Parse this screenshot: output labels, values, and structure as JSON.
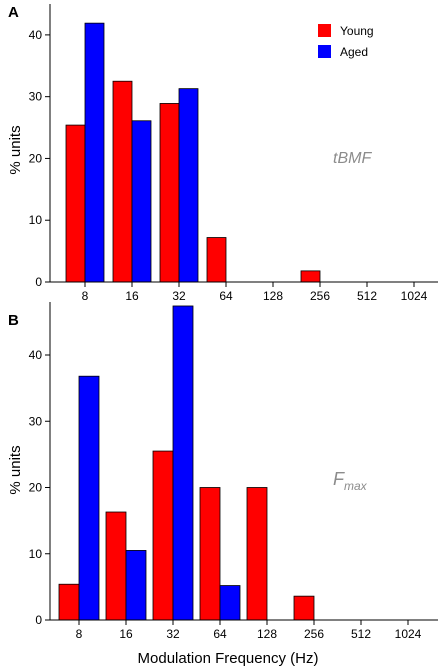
{
  "colors": {
    "young": "#ff0000",
    "aged": "#0000ff",
    "axis": "#000000",
    "annotation": "#8c8c8c"
  },
  "xlabel": "Modulation Frequency (Hz)",
  "chart_data": [
    {
      "type": "bar",
      "panel_label": "A",
      "annotation": "tBMF",
      "ylabel": "% units",
      "ylim": [
        0,
        45
      ],
      "yticks": [
        0,
        10,
        20,
        30,
        40
      ],
      "categories": [
        "8",
        "16",
        "32",
        "64",
        "128",
        "256",
        "512",
        "1024"
      ],
      "legend": {
        "position": "top-right",
        "entries": [
          "Young",
          "Aged"
        ]
      },
      "series": [
        {
          "name": "Young",
          "values": [
            25.4,
            32.5,
            28.9,
            7.2,
            0,
            1.8,
            0,
            0
          ]
        },
        {
          "name": "Aged",
          "values": [
            41.9,
            26.1,
            31.3,
            0,
            0,
            0,
            0,
            0
          ]
        }
      ]
    },
    {
      "type": "bar",
      "panel_label": "B",
      "annotation_main": "F",
      "annotation_sub": "max",
      "ylabel": "% units",
      "ylim": [
        0,
        48
      ],
      "yticks": [
        0,
        10,
        20,
        30,
        40
      ],
      "categories": [
        "8",
        "16",
        "32",
        "64",
        "128",
        "256",
        "512",
        "1024"
      ],
      "series": [
        {
          "name": "Young",
          "values": [
            5.4,
            16.3,
            25.5,
            20.0,
            20.0,
            3.6,
            0,
            0
          ]
        },
        {
          "name": "Aged",
          "values": [
            36.8,
            10.5,
            47.4,
            5.2,
            0,
            0,
            0,
            0
          ]
        }
      ]
    }
  ]
}
